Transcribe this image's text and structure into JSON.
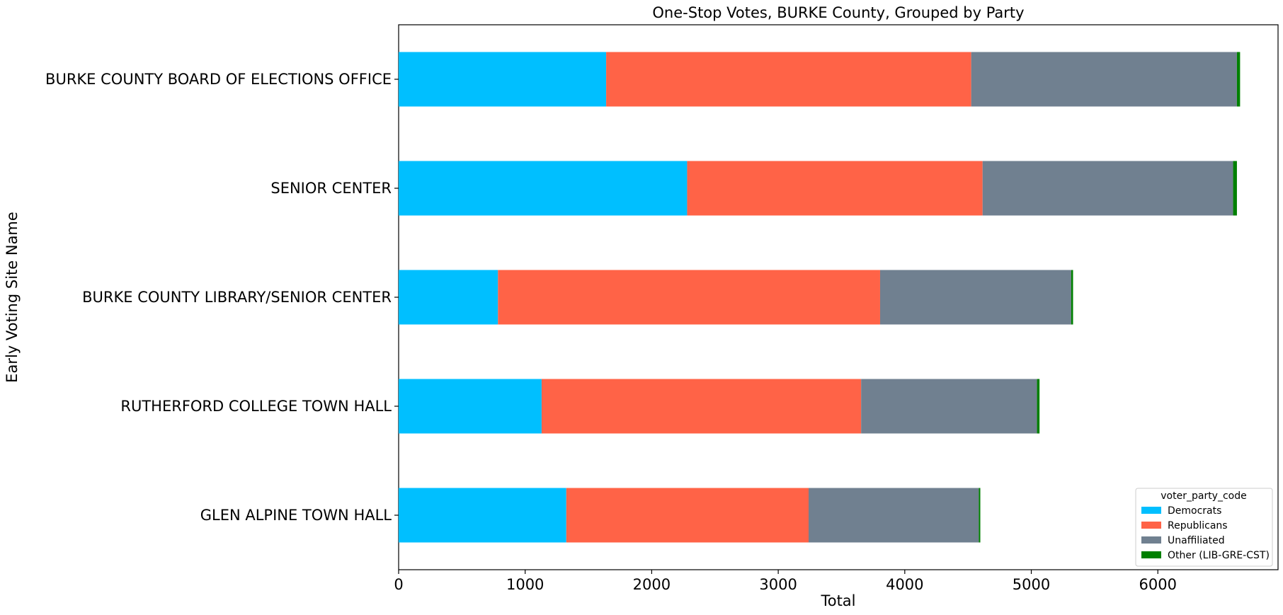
{
  "chart_data": {
    "type": "bar",
    "orientation": "horizontal",
    "stacked": true,
    "title": "One-Stop Votes, BURKE County, Grouped by Party",
    "xlabel": "Total",
    "ylabel": "Early Voting Site Name",
    "xlim": [
      0,
      6950
    ],
    "xticks": [
      0,
      1000,
      2000,
      3000,
      4000,
      5000,
      6000
    ],
    "categories": [
      "BURKE COUNTY BOARD OF ELECTIONS OFFICE",
      "SENIOR CENTER",
      "BURKE COUNTY LIBRARY/SENIOR CENTER",
      "RUTHERFORD COLLEGE TOWN HALL",
      "GLEN ALPINE TOWN HALL"
    ],
    "series": [
      {
        "name": "Democrats",
        "color": "#00bfff",
        "values": [
          1640,
          2280,
          785,
          1130,
          1325
        ]
      },
      {
        "name": "Republicans",
        "color": "#ff6347",
        "values": [
          2885,
          2335,
          3020,
          2525,
          1915
        ]
      },
      {
        "name": "Unaffiliated",
        "color": "#708090",
        "values": [
          2100,
          1980,
          1510,
          1390,
          1345
        ]
      },
      {
        "name": "Other (LIB-GRE-CST)",
        "color": "#008000",
        "values": [
          25,
          30,
          15,
          20,
          12
        ]
      }
    ],
    "legend": {
      "title": "voter_party_code",
      "position": "bottom-right"
    },
    "grid": false
  }
}
